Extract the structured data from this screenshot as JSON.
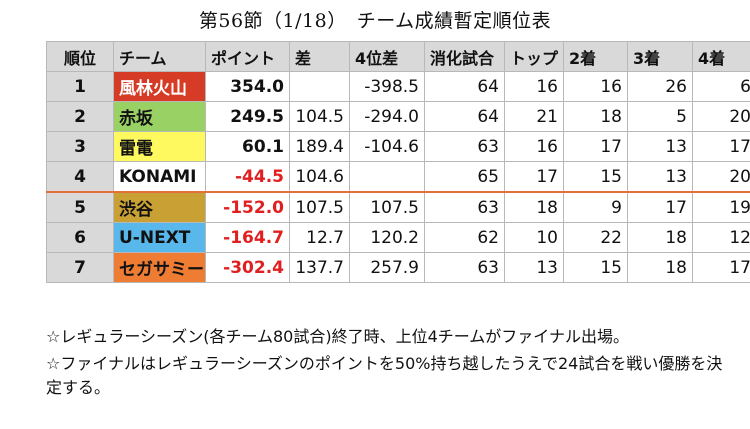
{
  "title": "第56節（1/18）　チーム成績暫定順位表",
  "headers": [
    "順位",
    "チーム",
    "ポイント",
    "差",
    "4位差",
    "消化試合",
    "トップ",
    "2着",
    "3着",
    "4着"
  ],
  "rows": [
    {
      "rank": "1",
      "team": "風林火山",
      "team_bg": "#d63c25",
      "team_color": "#ffffff",
      "points": "354.0",
      "neg": false,
      "diff": "",
      "diff4": "-398.5",
      "games": "64",
      "top": "16",
      "second": "16",
      "third": "26",
      "fourth": "6"
    },
    {
      "rank": "2",
      "team": "赤坂",
      "team_bg": "#99d165",
      "team_color": "#111111",
      "points": "249.5",
      "neg": false,
      "diff": "104.5",
      "diff4": "-294.0",
      "games": "64",
      "top": "21",
      "second": "18",
      "third": "5",
      "fourth": "20"
    },
    {
      "rank": "3",
      "team": "雷電",
      "team_bg": "#fdf95f",
      "team_color": "#111111",
      "points": "60.1",
      "neg": false,
      "diff": "189.4",
      "diff4": "-104.6",
      "games": "63",
      "top": "16",
      "second": "17",
      "third": "13",
      "fourth": "17"
    },
    {
      "rank": "4",
      "team": "KONAMI",
      "team_bg": "#ffffff",
      "team_color": "#111111",
      "points": "-44.5",
      "neg": true,
      "diff": "104.6",
      "diff4": "",
      "games": "65",
      "top": "17",
      "second": "15",
      "third": "13",
      "fourth": "20"
    },
    {
      "rank": "5",
      "team": "渋谷",
      "team_bg": "#c8a034",
      "team_color": "#111111",
      "points": "-152.0",
      "neg": true,
      "diff": "107.5",
      "diff4": "107.5",
      "games": "63",
      "top": "18",
      "second": "9",
      "third": "17",
      "fourth": "19"
    },
    {
      "rank": "6",
      "team": "U-NEXT",
      "team_bg": "#58b8eb",
      "team_color": "#111111",
      "points": "-164.7",
      "neg": true,
      "diff": "12.7",
      "diff4": "120.2",
      "games": "62",
      "top": "10",
      "second": "22",
      "third": "18",
      "fourth": "12"
    },
    {
      "rank": "7",
      "team": "セガサミー",
      "team_bg": "#ee7d33",
      "team_color": "#111111",
      "points": "-302.4",
      "neg": true,
      "diff": "137.7",
      "diff4": "257.9",
      "games": "63",
      "top": "13",
      "second": "15",
      "third": "18",
      "fourth": "17"
    }
  ],
  "notes": [
    "☆レギュラーシーズン(各チーム80試合)終了時、上位4チームがファイナル出場。",
    "☆ファイナルはレギュラーシーズンのポイントを50%持ち越したうえで24試合を戦い優勝を決定する。"
  ],
  "colors": {
    "cutoff_line": "#e2703a",
    "negative": "#e02020",
    "header_bg": "#d9d9d9"
  }
}
